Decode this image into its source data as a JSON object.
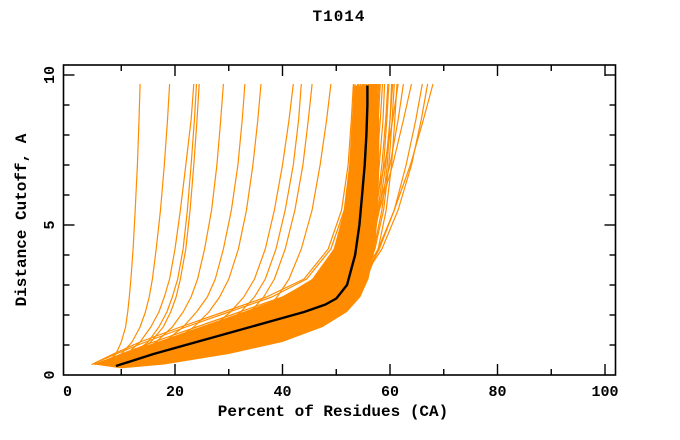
{
  "chart_data": {
    "type": "line",
    "title": "T1014",
    "xlabel": "Percent of Residues (CA)",
    "ylabel": "Distance Cutoff, A",
    "xlim": [
      0,
      102
    ],
    "ylim": [
      0,
      10.33
    ],
    "grid": false,
    "legend": null,
    "x_axis": {
      "labels": [
        0,
        20,
        40,
        60,
        80,
        100
      ],
      "major_ticks": [
        20,
        40,
        60,
        80,
        100
      ],
      "minor_ticks": [
        10,
        30,
        50,
        70,
        90
      ]
    },
    "y_axis": {
      "labels": [
        0,
        5,
        10
      ],
      "major_ticks": [
        5,
        10
      ],
      "minor_ticks": [
        1,
        2,
        3,
        4,
        6,
        7,
        8,
        9
      ]
    },
    "colors": {
      "model": "#ff8c00",
      "reference": "#000000",
      "axis": "#000000",
      "background": "#ffffff"
    },
    "y_levels": [
      0.35,
      0.7,
      1.1,
      1.6,
      2.1,
      2.6,
      3.2,
      4.2,
      5.5,
      7.0,
      8.5,
      9.7
    ],
    "reference_curve": {
      "name": "median-model-curve",
      "points": [
        [
          9,
          0.3
        ],
        [
          16,
          0.7
        ],
        [
          23,
          1.05
        ],
        [
          30,
          1.4
        ],
        [
          37,
          1.75
        ],
        [
          44,
          2.1
        ],
        [
          48,
          2.35
        ],
        [
          50,
          2.55
        ],
        [
          52,
          3.0
        ],
        [
          53.5,
          4.0
        ],
        [
          54.3,
          5.0
        ],
        [
          54.8,
          6.0
        ],
        [
          55.3,
          7.0
        ],
        [
          55.6,
          8.0
        ],
        [
          55.8,
          9.0
        ],
        [
          55.8,
          9.65
        ]
      ]
    },
    "model_curves": [
      [
        5,
        10,
        16,
        24,
        32,
        40,
        46,
        50,
        52,
        53,
        53.5,
        54
      ],
      [
        6,
        12,
        19,
        27,
        35,
        42,
        47.5,
        51,
        53,
        54,
        54.5,
        55
      ],
      [
        7,
        14,
        21,
        29,
        37,
        43.5,
        48.5,
        52,
        53.5,
        54.5,
        55,
        55.5
      ],
      [
        8,
        15,
        22.5,
        30.5,
        38.5,
        45,
        49.5,
        52.5,
        54.2,
        55.2,
        55.8,
        56
      ],
      [
        9,
        17,
        25,
        33,
        40.5,
        46.5,
        50.5,
        53.5,
        55,
        56,
        56.5,
        57
      ],
      [
        10,
        18,
        26.5,
        34.5,
        42,
        47.5,
        51.5,
        54,
        55.5,
        56.5,
        57,
        57.5
      ],
      [
        11,
        20,
        28.5,
        36.5,
        43.5,
        48.5,
        52,
        54.5,
        56,
        57,
        57.8,
        58.2
      ],
      [
        12,
        21.5,
        30,
        38,
        45,
        49.5,
        53,
        55.5,
        57,
        58,
        58.7,
        59
      ],
      [
        6.5,
        13,
        20,
        28,
        36,
        42.5,
        48,
        51.5,
        53.2,
        54.2,
        54.8,
        55.2
      ],
      [
        7.5,
        14.5,
        22,
        30,
        38,
        44.5,
        49,
        52.2,
        54,
        55,
        55.6,
        56.1
      ],
      [
        8.5,
        16,
        24,
        32,
        39.5,
        45.5,
        50,
        53,
        54.6,
        55.6,
        56.2,
        56.6
      ],
      [
        9.5,
        17.5,
        25.5,
        33.5,
        41,
        47,
        51,
        53.8,
        55.3,
        56.3,
        56.9,
        57.3
      ],
      [
        5.5,
        11,
        17.5,
        25.5,
        33.5,
        41,
        46.8,
        50.5,
        52.5,
        53.5,
        54,
        54.5
      ],
      [
        10.5,
        19,
        27.5,
        35.5,
        42.8,
        48,
        51.8,
        54.2,
        55.8,
        56.8,
        57.4,
        57.8
      ],
      [
        11.5,
        20.5,
        29,
        37,
        44.2,
        49,
        52.5,
        55,
        56.5,
        57.5,
        58.2,
        58.6
      ],
      [
        6,
        11.5,
        18,
        26,
        34,
        41.5,
        47.2,
        51,
        52.8,
        53.8,
        54.3,
        54.8
      ],
      [
        7,
        13.5,
        20.5,
        28.5,
        36.5,
        43,
        48.2,
        51.8,
        53.6,
        54.6,
        55.2,
        55.7
      ],
      [
        8,
        15.5,
        23,
        31,
        39,
        45.2,
        49.8,
        52.8,
        54.4,
        55.4,
        56,
        56.4
      ],
      [
        9,
        16.5,
        24.5,
        32.5,
        40,
        46,
        50.2,
        53.2,
        54.8,
        55.8,
        56.4,
        56.8
      ],
      [
        10,
        18.5,
        27,
        35,
        42.5,
        47.8,
        51.6,
        54,
        55.6,
        56.6,
        57.2,
        57.6
      ],
      [
        4.5,
        9,
        14.5,
        22,
        30,
        38,
        44.5,
        49,
        51.5,
        52.5,
        53,
        53.5
      ],
      [
        5,
        10.5,
        17,
        25,
        33,
        40.5,
        46.5,
        50.2,
        52.2,
        53.2,
        53.7,
        54.2
      ],
      [
        12,
        22,
        31,
        39,
        45.8,
        50.2,
        53.5,
        56,
        57.5,
        58.5,
        59.2,
        59.6
      ],
      [
        11,
        21,
        30.5,
        39,
        46,
        50.5,
        53.8,
        56.5,
        58,
        59.2,
        60,
        60.5
      ],
      [
        6.5,
        12.5,
        19.5,
        27.5,
        35.5,
        42,
        47.6,
        51.2,
        53,
        54,
        54.6,
        55
      ],
      [
        7.5,
        15,
        22.8,
        30.8,
        38.8,
        45,
        49.6,
        52.6,
        54.3,
        55.3,
        55.9,
        56.3
      ],
      [
        8.5,
        16.5,
        24.8,
        32.8,
        40.3,
        46.3,
        50.4,
        53.4,
        55,
        56,
        56.6,
        57
      ],
      [
        9.5,
        18,
        26,
        34,
        41.5,
        47.2,
        51.2,
        53.9,
        55.4,
        56.4,
        57,
        57.4
      ],
      [
        5.5,
        11.8,
        18.5,
        26.5,
        34.5,
        41.8,
        47.4,
        51,
        53,
        54,
        54.5,
        55
      ],
      [
        10.5,
        19.5,
        28,
        36,
        43,
        48.3,
        52,
        54.4,
        56,
        57,
        57.6,
        58
      ],
      [
        4.5,
        8.5,
        13.5,
        21,
        29,
        37,
        44,
        48.5,
        51,
        52.2,
        52.8,
        53.2
      ],
      [
        14,
        26,
        35,
        42,
        47.5,
        51.5,
        54.5,
        57,
        58.5,
        59.5,
        60,
        60.3
      ],
      [
        7,
        14,
        21.5,
        29.5,
        37.5,
        44,
        48.8,
        52.3,
        54.1,
        55.1,
        55.7,
        56.1
      ],
      [
        8,
        15.8,
        23.5,
        31.5,
        39.3,
        45.5,
        50,
        53,
        54.7,
        55.7,
        56.3,
        56.7
      ],
      [
        9,
        17,
        25.2,
        33.2,
        40.8,
        46.8,
        50.8,
        53.6,
        55.2,
        56.2,
        56.8,
        57.2
      ],
      [
        13,
        24,
        33,
        40.5,
        46.5,
        50.8,
        53.8,
        56.2,
        57.8,
        58.8,
        59.4,
        59.8
      ],
      [
        15,
        27,
        36,
        43,
        48.5,
        52.2,
        55,
        57.2,
        58.8,
        59.8,
        60.4,
        60.8
      ],
      [
        16,
        29,
        38,
        44.5,
        49.5,
        53,
        55.6,
        57.8,
        59.3,
        60.3,
        60.9,
        61.3
      ],
      [
        7,
        9,
        10,
        10.8,
        11.2,
        11.5,
        11.8,
        12.2,
        12.6,
        13,
        13.3,
        13.5
      ],
      [
        7.5,
        10,
        12,
        13.5,
        14.5,
        15.2,
        15.8,
        16.5,
        17.3,
        18,
        18.6,
        19
      ],
      [
        8,
        11,
        13.5,
        15.5,
        17,
        18,
        19,
        20,
        21,
        22,
        23,
        23.5
      ],
      [
        8.5,
        12,
        15,
        17,
        18.5,
        19.5,
        20.5,
        21.5,
        22.3,
        23,
        23.6,
        24
      ],
      [
        9,
        12.5,
        15.5,
        17.8,
        19.2,
        20.2,
        21,
        22,
        22.8,
        23.5,
        24.1,
        24.5
      ],
      [
        9,
        13,
        16.5,
        19.5,
        21.5,
        23,
        24.2,
        25.5,
        26.8,
        27.8,
        28.5,
        29
      ],
      [
        10,
        15,
        19.5,
        23.5,
        26.3,
        28.3,
        30,
        31.8,
        33.3,
        34.5,
        35.4,
        36
      ],
      [
        11,
        17,
        22.5,
        27,
        30.3,
        32.8,
        34.8,
        36.8,
        38.5,
        40,
        41.2,
        42
      ],
      [
        11.5,
        18,
        24,
        28.8,
        32.2,
        34.8,
        36.8,
        38.8,
        40.5,
        42,
        43,
        43.5
      ],
      [
        12,
        19,
        25.5,
        30.5,
        34,
        36.5,
        38.5,
        40.5,
        42.3,
        43.8,
        44.8,
        45.5
      ],
      [
        12.5,
        20,
        27,
        32.5,
        36.3,
        39,
        41.2,
        43.5,
        45.5,
        47,
        48.2,
        49
      ],
      [
        9.5,
        14,
        18,
        21.5,
        24,
        26,
        27.5,
        29,
        30.5,
        31.7,
        32.5,
        33
      ],
      [
        10,
        19,
        27.5,
        35.5,
        43,
        48.5,
        52.5,
        55.5,
        58,
        60.5,
        62.5,
        64
      ],
      [
        12,
        22,
        31,
        39,
        46,
        50.8,
        54.5,
        57.8,
        60.8,
        63.8,
        66.2,
        68
      ],
      [
        12.5,
        21.5,
        30.5,
        38.8,
        46,
        51,
        54.8,
        58.5,
        61.5,
        64,
        65.8,
        67
      ],
      [
        9,
        17.5,
        26,
        34,
        41.8,
        47.5,
        52,
        55,
        57.8,
        60,
        61.5,
        62.5
      ],
      [
        8,
        16,
        24,
        32.5,
        40.5,
        46.5,
        51,
        54.5,
        57,
        59,
        60.5,
        61.5
      ],
      [
        13,
        23,
        32,
        40,
        47,
        51.5,
        55,
        58,
        60.8,
        63,
        64.8,
        66
      ]
    ],
    "band_fill": [
      [
        5,
        0.35
      ],
      [
        10,
        0.7
      ],
      [
        17,
        1.1
      ],
      [
        25,
        1.6
      ],
      [
        33,
        2.1
      ],
      [
        40,
        2.6
      ],
      [
        45.5,
        3.2
      ],
      [
        49.5,
        4.2
      ],
      [
        51.5,
        5.5
      ],
      [
        52.5,
        7
      ],
      [
        53,
        8.5
      ],
      [
        53.2,
        9.65
      ],
      [
        57.5,
        9.65
      ],
      [
        58,
        8.5
      ],
      [
        58,
        7
      ],
      [
        57.8,
        5.5
      ],
      [
        57.2,
        4.2
      ],
      [
        56,
        3.2
      ],
      [
        54.5,
        2.6
      ],
      [
        52,
        2.1
      ],
      [
        47.5,
        1.6
      ],
      [
        40,
        1.1
      ],
      [
        30,
        0.7
      ],
      [
        18,
        0.35
      ],
      [
        10,
        0.22
      ]
    ],
    "band_overlays": [
      {
        "points": [
          [
            52.8,
            2.8
          ],
          [
            53.8,
            4
          ],
          [
            54.2,
            5.5
          ],
          [
            54.6,
            7
          ],
          [
            54.9,
            8.5
          ],
          [
            55,
            9.55
          ]
        ],
        "width": 4.5,
        "dash": "7 6"
      },
      {
        "points": [
          [
            55.2,
            3.2
          ],
          [
            55.9,
            4.5
          ],
          [
            56.2,
            6
          ],
          [
            56.4,
            7.5
          ],
          [
            56.5,
            9.55
          ]
        ],
        "width": 4.5,
        "dash": "6 7"
      },
      {
        "points": [
          [
            51.8,
            2.4
          ],
          [
            52.6,
            3.2
          ],
          [
            53.2,
            4.2
          ],
          [
            53.6,
            5.2
          ]
        ],
        "width": 4,
        "dash": "5 4"
      }
    ]
  }
}
